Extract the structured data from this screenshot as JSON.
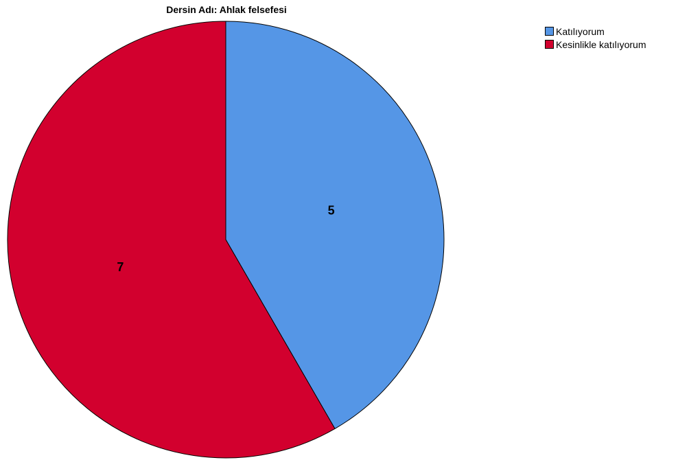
{
  "chart_data": {
    "type": "pie",
    "title": "Dersin Adı: Ahlak felsefesi",
    "categories": [
      "Katılıyorum",
      "Kesinlikle katılıyorum"
    ],
    "values": [
      5,
      7
    ],
    "colors": [
      "#5596e6",
      "#d2002e"
    ],
    "data_labels": [
      "5",
      "7"
    ],
    "legend": {
      "placement": "top-right",
      "entries": [
        "Katılıyorum",
        "Kesinlikle katılıyorum"
      ]
    },
    "start_angle_deg": 0,
    "direction": "clockwise"
  }
}
